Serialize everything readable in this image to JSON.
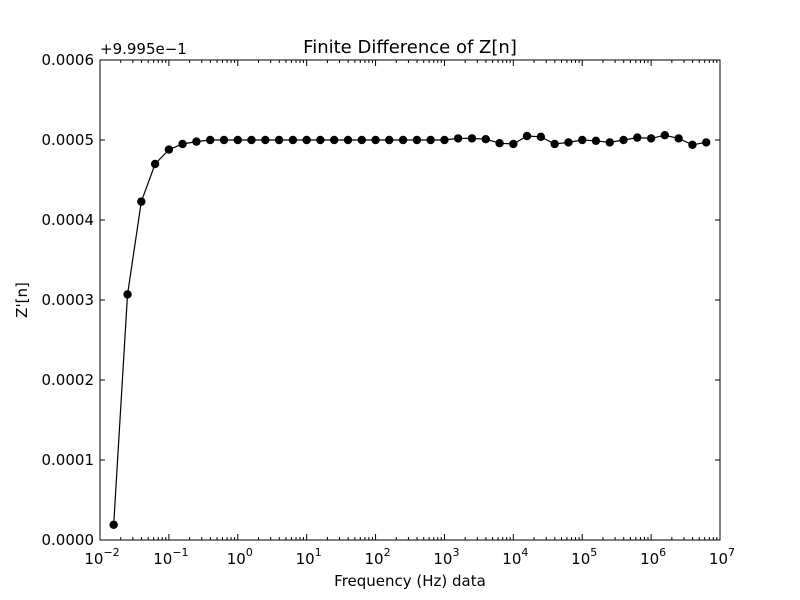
{
  "chart_data": {
    "type": "line",
    "title": "Finite Difference of Z[n]",
    "xlabel": "Frequency (Hz) data",
    "ylabel": "Z'[n]",
    "x_scale": "log",
    "xlim": [
      0.01,
      10000000
    ],
    "ylim": [
      0,
      0.0006
    ],
    "y_offset_label": "+9.995e−1",
    "x_tick_values": [
      0.01,
      0.1,
      1,
      10,
      100,
      1000,
      10000,
      100000,
      1000000,
      10000000
    ],
    "x_tick_bases": [
      "10",
      "10",
      "10",
      "10",
      "10",
      "10",
      "10",
      "10",
      "10",
      "10"
    ],
    "x_tick_exponents": [
      "−2",
      "−1",
      "0",
      "1",
      "2",
      "3",
      "4",
      "5",
      "6",
      "7"
    ],
    "y_tick_values": [
      0,
      0.0001,
      0.0002,
      0.0003,
      0.0004,
      0.0005,
      0.0006
    ],
    "y_tick_labels": [
      "0.0000",
      "0.0001",
      "0.0002",
      "0.0003",
      "0.0004",
      "0.0005",
      "0.0006"
    ],
    "grid": false,
    "legend": "none",
    "series": [
      {
        "color": "#000000",
        "marker": "circle",
        "x": [
          0.0158,
          0.0251,
          0.0398,
          0.0631,
          0.1,
          0.158,
          0.251,
          0.398,
          0.631,
          1,
          1.58,
          2.51,
          3.98,
          6.31,
          10,
          15.8,
          25.1,
          39.8,
          63.1,
          100,
          158,
          251,
          398,
          631,
          1000,
          1580,
          2510,
          3980,
          6310,
          10000,
          15800,
          25100,
          39800,
          63100,
          100000,
          158000,
          251000,
          398000,
          631000,
          1000000,
          1580000,
          2510000,
          3980000,
          6310000
        ],
        "y": [
          1.9e-05,
          0.000307,
          0.000423,
          0.00047,
          0.000488,
          0.000495,
          0.000498,
          0.0005,
          0.0005,
          0.0005,
          0.0005,
          0.0005,
          0.0005,
          0.0005,
          0.0005,
          0.0005,
          0.0005,
          0.0005,
          0.0005,
          0.0005,
          0.0005,
          0.0005,
          0.0005,
          0.0005,
          0.0005,
          0.000502,
          0.000502,
          0.000501,
          0.000496,
          0.000495,
          0.000505,
          0.000504,
          0.000495,
          0.000497,
          0.0005,
          0.000499,
          0.000497,
          0.0005,
          0.000503,
          0.000502,
          0.000506,
          0.000502,
          0.000494,
          0.000497
        ]
      }
    ]
  }
}
